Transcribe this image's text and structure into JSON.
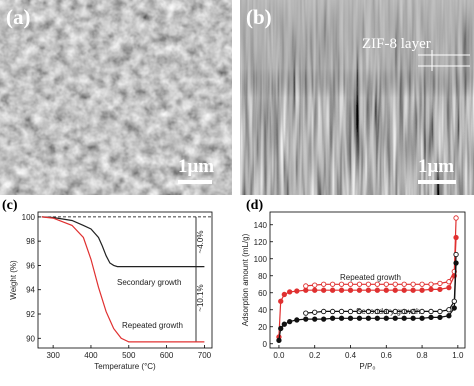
{
  "panels": [
    {
      "label": "(a)",
      "scale_bar": "1μm"
    },
    {
      "label": "(b)",
      "scale_bar": "1μm",
      "annotation": "ZIF-8 layer"
    }
  ],
  "chart_data": [
    {
      "type": "line",
      "label": "(c)",
      "x_label": "Temperature (°C)",
      "y_label": "Weight (%)",
      "xlim": [
        260,
        720
      ],
      "xticks": [
        300,
        400,
        500,
        600,
        700
      ],
      "ylim": [
        89.2,
        100.4
      ],
      "yticks": [
        90,
        92,
        94,
        96,
        98,
        100
      ],
      "x": [
        270,
        300,
        350,
        380,
        400,
        420,
        430,
        440,
        450,
        460,
        470,
        480,
        500,
        550,
        600,
        650,
        700
      ],
      "series": [
        {
          "color": "#222222",
          "values": [
            100,
            99.95,
            99.7,
            99.3,
            99,
            98.3,
            97.6,
            96.8,
            96.2,
            96.0,
            95.9,
            95.9,
            95.9,
            95.9,
            95.9,
            95.9,
            95.9
          ]
        },
        {
          "color": "#e03030",
          "values": [
            100,
            99.9,
            99.3,
            98.3,
            96.5,
            94.2,
            93.2,
            92.2,
            91.5,
            90.8,
            90.4,
            90.0,
            89.7,
            89.7,
            89.7,
            89.7,
            89.7
          ]
        }
      ],
      "annotations": [
        "Secondary growth",
        "Repeated growth",
        "~4.0%",
        "~10.1%"
      ]
    },
    {
      "type": "line",
      "label": "(d)",
      "x_label": "P/P₀",
      "y_label": "Adsorption amount (mL/g)",
      "xlim": [
        -0.05,
        1.04
      ],
      "xticks": [
        {
          "value": 0,
          "label": "0.0"
        },
        0.2,
        0.4,
        0.6,
        0.8,
        {
          "value": 1,
          "label": "1.0"
        }
      ],
      "ylim": [
        -5,
        155
      ],
      "yticks": [
        0,
        20,
        40,
        60,
        80,
        100,
        120,
        140
      ],
      "x": [
        0.0,
        0.01,
        0.03,
        0.06,
        0.1,
        0.15,
        0.2,
        0.25,
        0.3,
        0.35,
        0.4,
        0.45,
        0.5,
        0.55,
        0.6,
        0.65,
        0.7,
        0.75,
        0.8,
        0.85,
        0.9,
        0.95,
        0.98,
        0.99
      ],
      "series": [
        {
          "color": "#e03030",
          "marker": "filled",
          "values": [
            8,
            50,
            58,
            61,
            62,
            63,
            63,
            63,
            63,
            63,
            63,
            63,
            63,
            63,
            63,
            63,
            63,
            63,
            63,
            64,
            64,
            66,
            80,
            125
          ]
        },
        {
          "color": "#e03030",
          "marker": "open",
          "values": [
            null,
            null,
            null,
            null,
            null,
            68,
            69,
            70,
            70,
            70,
            70,
            70,
            70,
            70,
            70,
            70,
            70,
            70,
            70,
            70,
            71,
            73,
            85,
            148
          ]
        },
        {
          "color": "#111111",
          "marker": "filled",
          "values": [
            4,
            18,
            23,
            26,
            28,
            29,
            29,
            29,
            30,
            30,
            30,
            30,
            30,
            30,
            30,
            30,
            30,
            30,
            30,
            31,
            31,
            33,
            42,
            95
          ]
        },
        {
          "color": "#111111",
          "marker": "open",
          "values": [
            null,
            null,
            null,
            null,
            null,
            36,
            37,
            38,
            38,
            38,
            38,
            38,
            38,
            38,
            38,
            38,
            38,
            38,
            38,
            38,
            38,
            40,
            50,
            105
          ]
        }
      ],
      "annotations": [
        "Repeated growth",
        "Secondary growth"
      ]
    }
  ]
}
